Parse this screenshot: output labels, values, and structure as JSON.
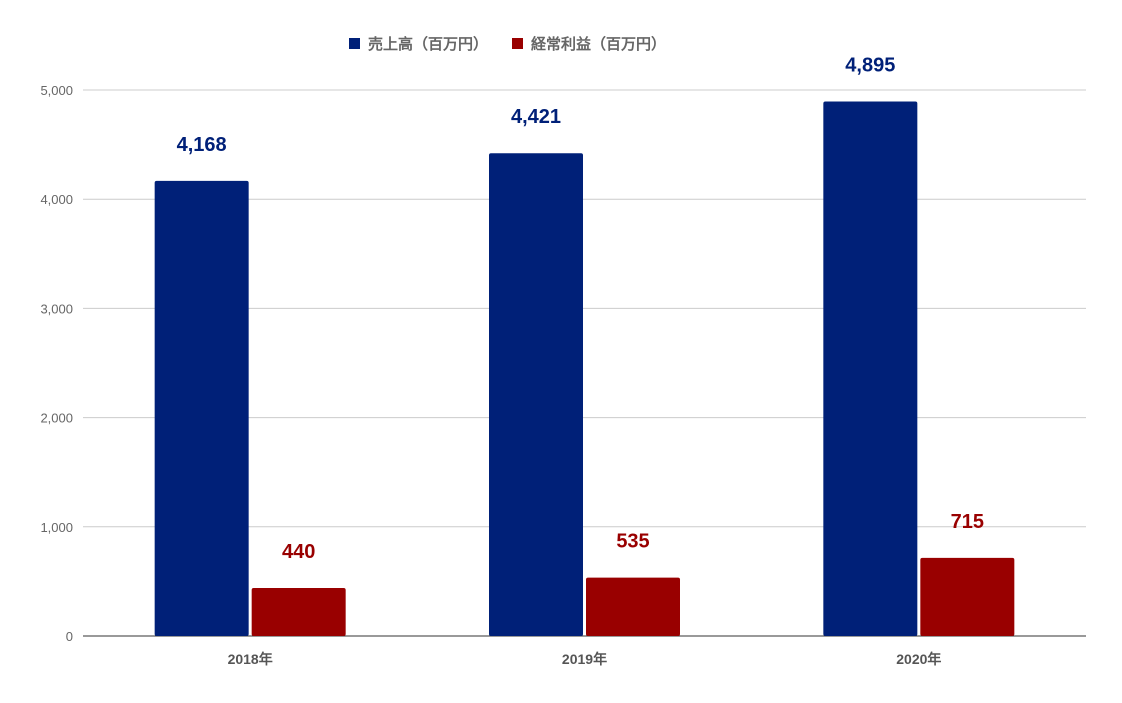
{
  "chart_data": {
    "type": "bar",
    "title": "",
    "xlabel": "",
    "ylabel": "",
    "categories": [
      "2018年",
      "2019年",
      "2020年"
    ],
    "series": [
      {
        "name": "売上高（百万円）",
        "color": "#002078",
        "values": [
          4168,
          4421,
          4895
        ],
        "labels": [
          "4,168",
          "4,421",
          "4,895"
        ]
      },
      {
        "name": "経常利益（百万円）",
        "color": "#990000",
        "values": [
          440,
          535,
          715
        ],
        "labels": [
          "440",
          "535",
          "715"
        ]
      }
    ],
    "ylim": [
      0,
      5000
    ],
    "yticks": [
      0,
      1000,
      2000,
      3000,
      4000,
      5000
    ],
    "ytick_labels": [
      "0",
      "1,000",
      "2,000",
      "3,000",
      "4,000",
      "5,000"
    ],
    "grid": true,
    "legend_position": "top-center"
  }
}
